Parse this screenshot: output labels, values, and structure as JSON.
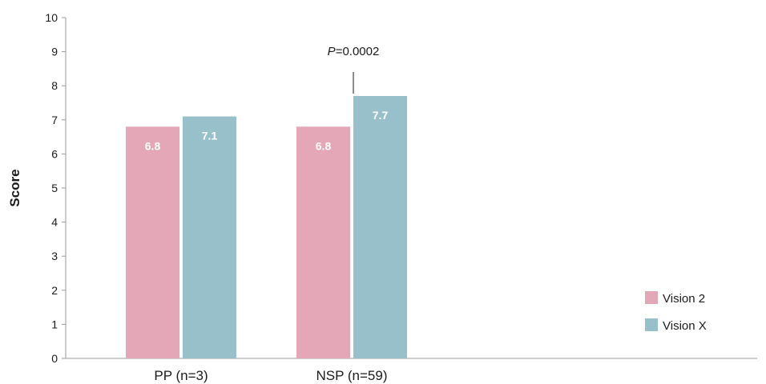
{
  "chart_data": {
    "type": "bar",
    "categories": [
      "PP (n=3)",
      "NSP (n=59)"
    ],
    "series": [
      {
        "name": "Vision 2",
        "values": [
          6.8,
          6.8
        ],
        "labels": [
          "6.8",
          "6.8"
        ],
        "color": "#e3a7b8"
      },
      {
        "name": "Vision X",
        "values": [
          7.1,
          7.7
        ],
        "labels": [
          "7.1",
          "7.7"
        ],
        "color": "#98c0cb"
      }
    ],
    "ylabel": "Score",
    "ylim": [
      0,
      10
    ],
    "yticks": [
      "0",
      "1",
      "2",
      "3",
      "4",
      "5",
      "6",
      "7",
      "8",
      "9",
      "10"
    ],
    "grid": false,
    "legend_position": "bottom-right",
    "annotations": [
      {
        "category": "NSP (n=59)",
        "series": "Vision X",
        "italic": "P",
        "text": "=0.0002"
      }
    ]
  }
}
